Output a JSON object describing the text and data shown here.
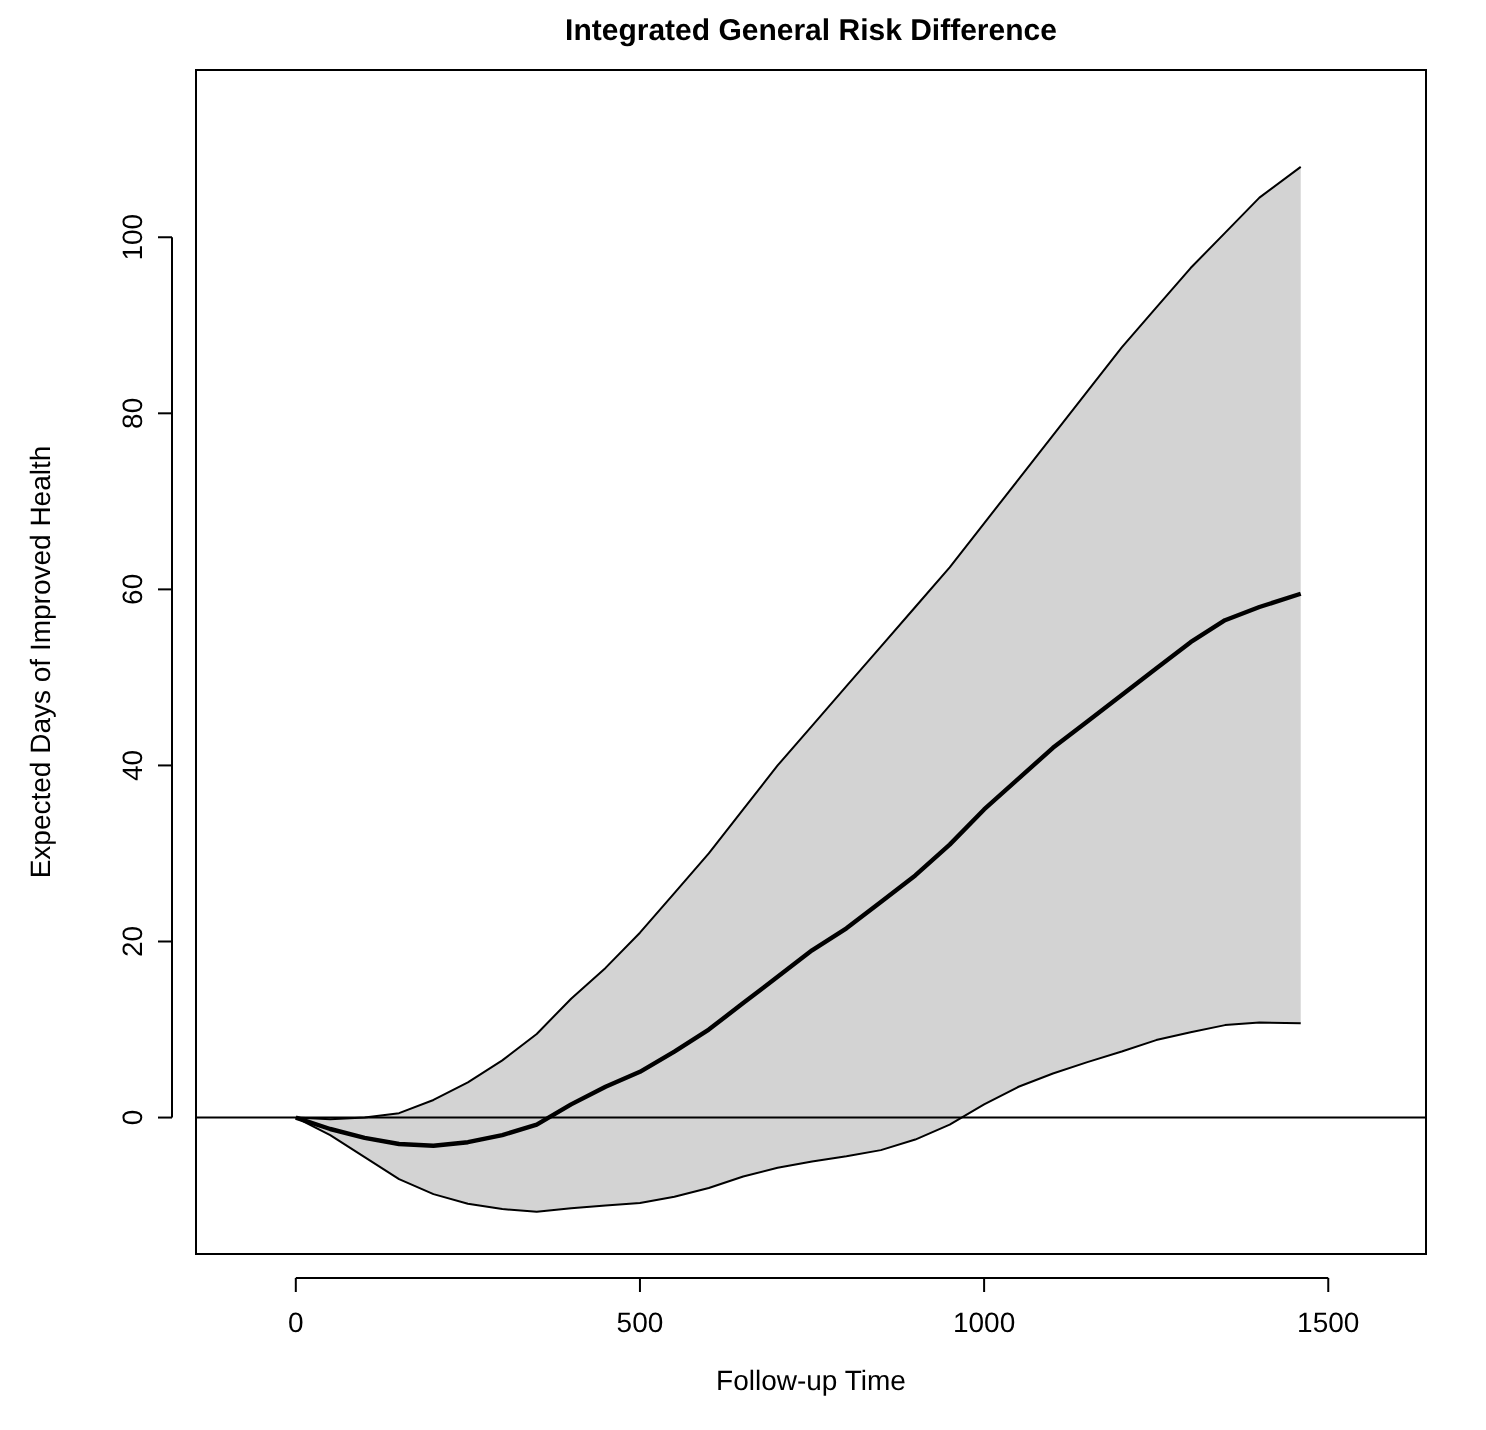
{
  "chart_data": {
    "type": "line",
    "title": "Integrated General Risk Difference",
    "xlabel": "Follow-up Time",
    "ylabel": "Expected Days of Improved Health",
    "x": [
      0,
      50,
      100,
      150,
      200,
      250,
      300,
      350,
      400,
      450,
      500,
      550,
      600,
      650,
      700,
      750,
      800,
      850,
      900,
      950,
      1000,
      1050,
      1100,
      1150,
      1200,
      1250,
      1300,
      1350,
      1400,
      1460
    ],
    "series": [
      {
        "color": "#000000",
        "values": [
          0,
          -1.3,
          -2.3,
          -3,
          -3.2,
          -2.8,
          -2,
          -0.8,
          1.5,
          3.5,
          5.2,
          7.5,
          10,
          13,
          16,
          19,
          21.5,
          24.5,
          27.5,
          31,
          35,
          38.5,
          42,
          45,
          48,
          51,
          54,
          56.5,
          58,
          59.5
        ],
        "lower": [
          0,
          -2,
          -4.5,
          -7,
          -8.7,
          -9.8,
          -10.4,
          -10.7,
          -10.3,
          -10,
          -9.7,
          -9,
          -8,
          -6.7,
          -5.7,
          -5,
          -4.4,
          -3.7,
          -2.5,
          -0.8,
          1.5,
          3.5,
          5,
          6.3,
          7.5,
          8.8,
          9.7,
          10.5,
          10.8,
          10.7
        ],
        "upper": [
          0,
          -0.2,
          0,
          0.5,
          2,
          4,
          6.5,
          9.5,
          13.5,
          17,
          21,
          25.5,
          30,
          35,
          40,
          44.5,
          49,
          53.5,
          58,
          62.5,
          67.5,
          72.5,
          77.5,
          82.5,
          87.5,
          92,
          96.5,
          100.5,
          104.5,
          108
        ]
      },
      {
        "color": "#000000",
        "values": [
          0,
          -2,
          -4.5,
          -7,
          -8.7,
          -9.8,
          -10.4,
          -10.7,
          -10.3,
          -10,
          -9.7,
          -9,
          -8,
          -6.7,
          -5.7,
          -5,
          -4.4,
          -3.7,
          -2.5,
          -0.8,
          1.5,
          3.5,
          5,
          6.3,
          7.5,
          8.8,
          9.7,
          10.5,
          10.8,
          10.7
        ]
      },
      {
        "color": "#000000",
        "values": [
          0,
          -0.2,
          0,
          0.5,
          2,
          4,
          6.5,
          9.5,
          13.5,
          17,
          21,
          25.5,
          30,
          35,
          40,
          44.5,
          49,
          53.5,
          58,
          62.5,
          67.5,
          72.5,
          77.5,
          82.5,
          87.5,
          92,
          96.5,
          100.5,
          104.5,
          108
        ]
      }
    ],
    "xlim": [
      -145,
      1642
    ],
    "ylim": [
      -15.5,
      119
    ],
    "xticks": [
      0,
      500,
      1000,
      1500
    ],
    "yticks": [
      0,
      20,
      40,
      60,
      80,
      100
    ],
    "ref_lines": [
      {
        "axis": "y",
        "value": 0,
        "color": "#000000"
      }
    ],
    "line_style": "solid"
  }
}
